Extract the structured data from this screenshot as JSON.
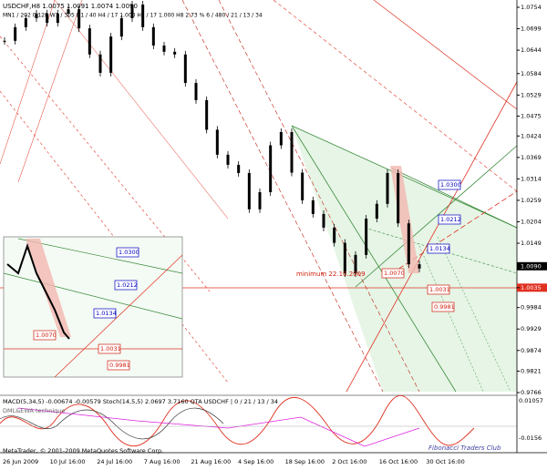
{
  "header": {
    "line1": "USDCHF,H8  1.0075 1.0091 1.0074 1.0090",
    "line2": "MN1 / 202   0.128   W1 / 305   D1 / 40   H4 / 17   1.000   H1 / 17   1.000   H8   2.73 %   6 / 480 / 21 / 13 / 34"
  },
  "price_axis": [
    "1.0754",
    "1.0699",
    "1.0644",
    "1.0584",
    "1.0529",
    "1.0475",
    "1.0424",
    "1.0369",
    "1.0314",
    "1.0259",
    "1.0204",
    "1.0149",
    "1.0090",
    "1.0035",
    "0.9984",
    "0.9929",
    "0.9874",
    "0.9821",
    "0.9766"
  ],
  "current_price": "1.0090",
  "level_price": "1.0035",
  "closes": [
    1.0668,
    1.0703,
    1.0726,
    1.0738,
    1.0714,
    1.0738,
    1.0749,
    1.07,
    1.0633,
    1.0586,
    1.0679,
    1.0726,
    1.0761,
    1.0703,
    1.0656,
    1.064,
    1.0633,
    1.056,
    1.0516,
    1.044,
    1.0376,
    1.035,
    1.0329,
    1.0236,
    1.028,
    1.04,
    1.0434,
    1.033,
    1.0259,
    1.0224,
    1.0189,
    1.015,
    1.0072,
    1.0119,
    1.0212,
    1.025,
    1.0329,
    1.02,
    1.0095,
    1.0084
  ],
  "annotation": "minimum 22.10.2009",
  "targets": {
    "t1": "1.0300",
    "t2": "1.0212",
    "t3": "1.0134",
    "t4": "1.0070",
    "t5": "1.0031",
    "t6": "0.9981"
  },
  "indicator": {
    "header": "MACD(5,34,5) -0.00674 -0.00579  Stoch(14,5,5) 2.0697 3.7160  QTA USDCHF  | 0 / 21 / 13 / 34",
    "sub": "DML&EWA technique",
    "axis_top": "0.01057",
    "axis_bottom": "-0.0156",
    "watermark": "Fibonacci Traders Club"
  },
  "copyright": "MetaTrader, © 2001-2009 MetaQuotes Software Corp.",
  "dates": [
    "26 Jun 2009",
    "10 Jul 16:00",
    "24 Jul 16:00",
    "7 Aug 16:00",
    "21 Aug 16:00",
    "4 Sep 16:00",
    "18 Sep 16:00",
    "2 Oct 16:00",
    "16 Oct 16:00",
    "30 Oct 16:00"
  ]
}
